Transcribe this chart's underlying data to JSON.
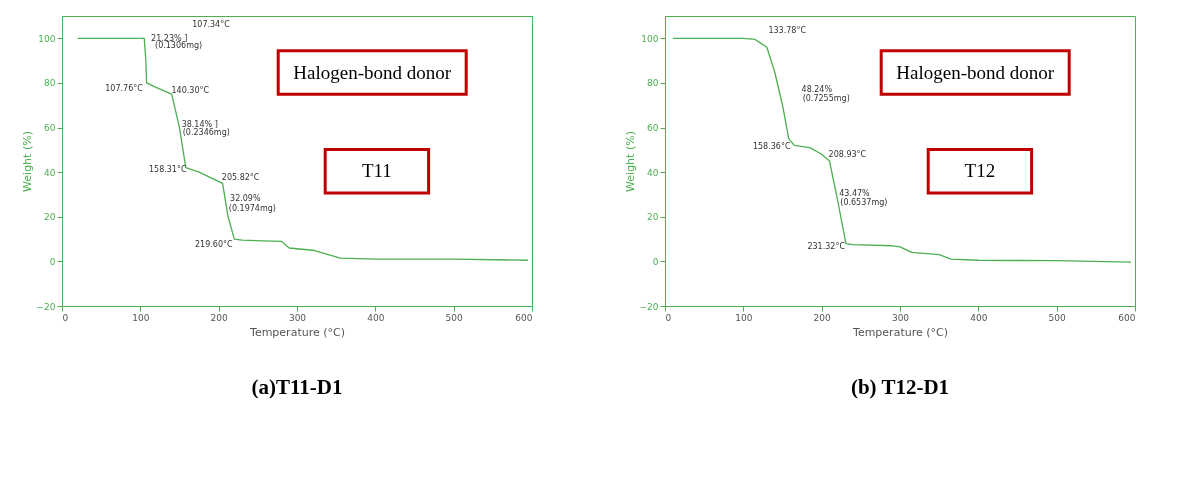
{
  "chart_data": [
    {
      "type": "line",
      "title": "(a)T11-D1",
      "xlabel": "Temperature (°C)",
      "ylabel": "Weight (%)",
      "xlim": [
        0,
        600
      ],
      "ylim": [
        -20,
        110
      ],
      "xticks": [
        0,
        100,
        200,
        300,
        400,
        500,
        600
      ],
      "yticks": [
        -20,
        0,
        20,
        40,
        60,
        80,
        100
      ],
      "grid": false,
      "marker": "none",
      "line_style": "solid",
      "series": [
        {
          "color": "#4caf50",
          "x": [
            20,
            105,
            107,
            108,
            120,
            140,
            150,
            158,
            175,
            205,
            212,
            220,
            230,
            280,
            290,
            320,
            340,
            355,
            400,
            500,
            595
          ],
          "values": [
            100,
            100,
            90,
            80,
            78,
            75,
            60,
            42,
            40,
            35,
            20,
            10,
            9.5,
            9,
            6,
            5,
            3,
            1.5,
            1,
            1,
            0.5
          ]
        }
      ],
      "annotations": [
        "107.34°C",
        "21.23% ]",
        "(0.1306mg)",
        "107.76°C",
        "140.30°C",
        "38.14% ]",
        "(0.2346mg)",
        "158.31°C",
        "205.82°C",
        "32.09%",
        "(0.1974mg)",
        "219.60°C",
        "Halogen-bond donor",
        "T11"
      ]
    },
    {
      "type": "line",
      "title": "(b) T12-D1",
      "xlabel": "Temperature (°C)",
      "ylabel": "Weight (%)",
      "xlim": [
        0,
        600
      ],
      "ylim": [
        -20,
        110
      ],
      "xticks": [
        0,
        100,
        200,
        300,
        400,
        500,
        600
      ],
      "yticks": [
        -20,
        0,
        20,
        40,
        60,
        80,
        100
      ],
      "grid": false,
      "marker": "none",
      "line_style": "solid",
      "series": [
        {
          "color": "#4caf50",
          "x": [
            10,
            100,
            115,
            130,
            140,
            150,
            158,
            165,
            185,
            200,
            210,
            220,
            231,
            240,
            290,
            300,
            315,
            350,
            365,
            400,
            500,
            595
          ],
          "values": [
            100,
            100,
            99.5,
            96,
            85,
            70,
            55,
            52,
            51,
            48,
            45,
            28,
            8,
            7.5,
            7,
            6.5,
            4,
            3,
            1,
            0.5,
            0.3,
            -0.3
          ]
        }
      ],
      "annotations": [
        "133.78°C",
        "48.24%",
        "(0.7255mg)",
        "158.36°C",
        "208.93°C",
        "43.47%",
        "(0.6537mg)",
        "231.32°C",
        "Halogen-bond donor",
        "T12"
      ]
    }
  ]
}
